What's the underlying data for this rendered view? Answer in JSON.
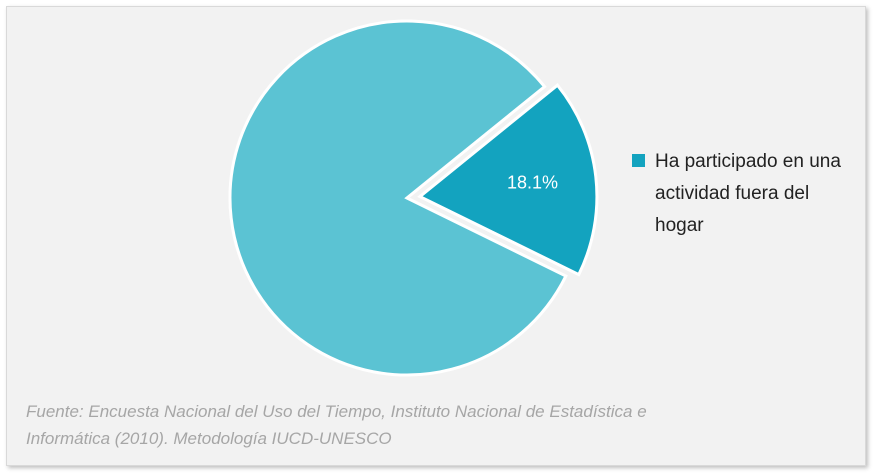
{
  "chart_data": {
    "type": "pie",
    "categories": [
      "Ha participado en una actividad fuera del hogar",
      null
    ],
    "values": [
      18.1,
      81.9
    ],
    "value_labels": [
      "18.1%",
      null
    ],
    "colors": [
      "#13a3bf",
      "#5bc3d3"
    ],
    "legend": "right",
    "source": [
      "Fuente: Encuesta Nacional del Uso del Tiempo, Instituto Nacional de Estadística e",
      "Informática (2010). Metodología IUCD-UNESCO"
    ]
  }
}
